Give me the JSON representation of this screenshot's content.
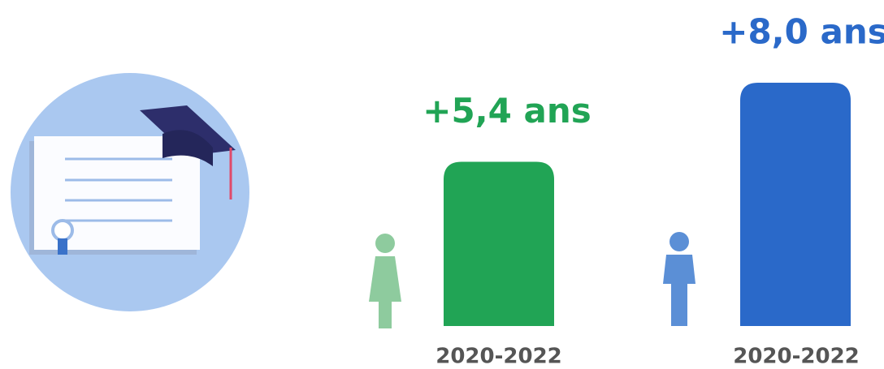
{
  "chart_data": {
    "type": "bar",
    "categories": [
      "2020-2022",
      "2020-2022"
    ],
    "values": [
      5.4,
      8.0
    ],
    "value_labels": [
      "+5,4 ans",
      "+8,0 ans"
    ],
    "colors": [
      "#21a455",
      "#2a69c9"
    ]
  }
}
